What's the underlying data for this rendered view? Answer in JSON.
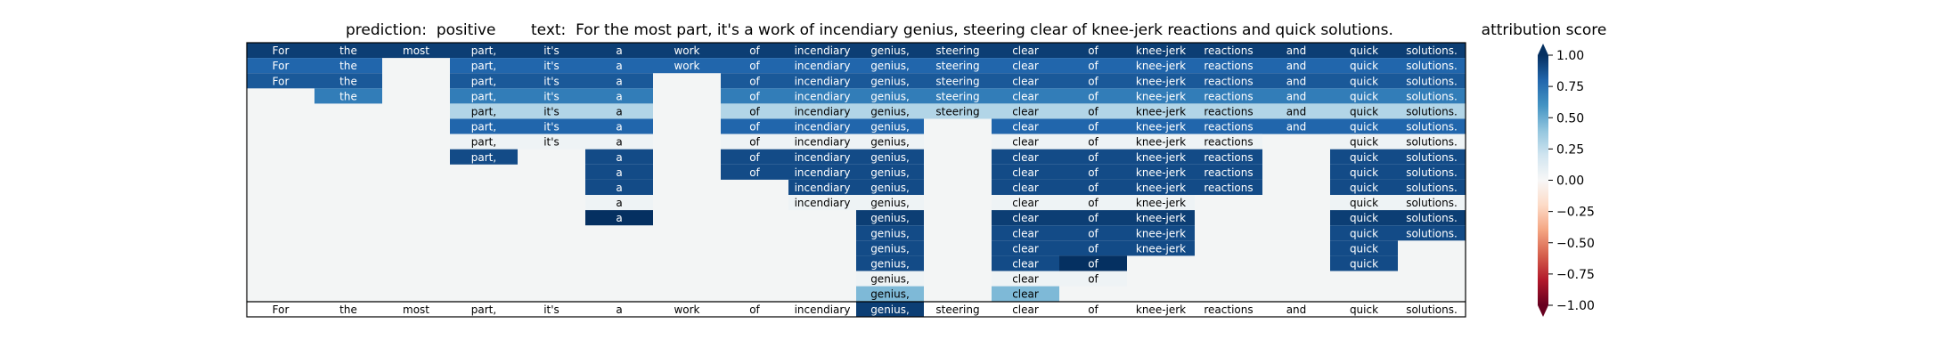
{
  "chart_data": {
    "type": "heatmap",
    "title_left": "prediction:  positive",
    "title_right": "text:  For the most part, it's a work of incendiary genius, steering clear of knee-jerk reactions and quick solutions.",
    "colorbar_title": "attribution score",
    "words": [
      "For",
      "the",
      "most",
      "part,",
      "it's",
      "a",
      "work",
      "of",
      "incendiary",
      "genius,",
      "steering",
      "clear",
      "of",
      "knee-jerk",
      "reactions",
      "and",
      "quick",
      "solutions."
    ],
    "colorbar_range": [
      -1.0,
      1.0
    ],
    "colorbar_ticks": [
      "1.00",
      "0.75",
      "0.50",
      "0.25",
      "0.00",
      "−0.25",
      "−0.50",
      "−0.75",
      "−1.00"
    ],
    "colormap": "RdBu",
    "rows": [
      {
        "start": 0,
        "values": [
          0.95,
          0.95,
          0.95,
          0.95,
          0.95,
          0.95,
          0.95,
          0.95,
          0.95,
          0.95,
          0.95,
          0.95,
          0.95,
          0.95,
          0.95,
          0.95,
          0.95,
          0.95
        ]
      },
      {
        "start": 0,
        "values": [
          0.8,
          0.8,
          null,
          0.8,
          0.8,
          0.8,
          0.8,
          0.8,
          0.8,
          0.8,
          0.8,
          0.8,
          0.8,
          0.8,
          0.8,
          0.8,
          0.8,
          0.8
        ]
      },
      {
        "start": 0,
        "values": [
          0.85,
          0.85,
          null,
          0.85,
          0.85,
          0.85,
          null,
          0.85,
          0.85,
          0.85,
          0.85,
          0.85,
          0.85,
          0.85,
          0.85,
          0.85,
          0.85,
          0.85
        ]
      },
      {
        "start": 1,
        "values": [
          0.7,
          null,
          0.7,
          0.7,
          0.7,
          null,
          0.7,
          0.7,
          0.7,
          0.7,
          0.7,
          0.7,
          0.7,
          0.7,
          0.7,
          0.7,
          0.7
        ]
      },
      {
        "start": 3,
        "values": [
          0.3,
          0.3,
          0.3,
          null,
          0.3,
          0.3,
          0.3,
          0.3,
          0.3,
          0.3,
          0.3,
          0.3,
          0.3,
          0.3,
          0.3
        ]
      },
      {
        "start": 3,
        "values": [
          0.8,
          0.8,
          0.8,
          null,
          0.8,
          0.8,
          0.8,
          null,
          0.8,
          0.8,
          0.8,
          0.8,
          0.8,
          0.8,
          0.8
        ]
      },
      {
        "start": 3,
        "values": [
          0.05,
          0.05,
          0.05,
          null,
          0.05,
          0.05,
          0.05,
          null,
          0.05,
          0.05,
          0.05,
          0.05,
          null,
          0.05,
          0.05
        ]
      },
      {
        "start": 3,
        "values": [
          0.9,
          null,
          0.9,
          null,
          0.9,
          0.9,
          0.9,
          null,
          0.9,
          0.9,
          0.9,
          0.9,
          null,
          0.9,
          0.9
        ]
      },
      {
        "start": 5,
        "values": [
          0.9,
          null,
          0.9,
          0.9,
          0.9,
          null,
          0.9,
          0.9,
          0.9,
          0.9,
          null,
          0.9,
          0.9
        ]
      },
      {
        "start": 5,
        "values": [
          0.9,
          null,
          null,
          0.9,
          0.9,
          null,
          0.9,
          0.9,
          0.9,
          0.9,
          null,
          0.9,
          0.9
        ]
      },
      {
        "start": 5,
        "values": [
          0.05,
          null,
          null,
          0.05,
          0.05,
          null,
          0.05,
          0.05,
          0.05,
          null,
          null,
          0.05,
          0.05
        ]
      },
      {
        "start": 5,
        "values": [
          1.0,
          null,
          null,
          null,
          0.95,
          null,
          0.95,
          0.95,
          0.95,
          null,
          null,
          0.95,
          0.95
        ]
      },
      {
        "start": 9,
        "values": [
          0.9,
          null,
          0.9,
          0.9,
          0.9,
          null,
          null,
          0.9,
          0.9
        ]
      },
      {
        "start": 9,
        "values": [
          0.9,
          null,
          0.9,
          0.9,
          0.9,
          null,
          null,
          0.9
        ]
      },
      {
        "start": 9,
        "values": [
          0.9,
          null,
          0.9,
          1.0,
          null,
          null,
          null,
          0.9
        ]
      },
      {
        "start": 9,
        "values": [
          0.05,
          null,
          0.05,
          0.05
        ]
      },
      {
        "start": 9,
        "values": [
          0.45,
          null,
          0.45
        ]
      }
    ],
    "bottom_row": {
      "values": [
        0,
        0,
        0,
        0,
        0,
        0,
        0,
        0,
        0,
        0.95,
        0,
        0,
        0,
        0,
        0,
        0,
        0,
        0
      ]
    }
  }
}
